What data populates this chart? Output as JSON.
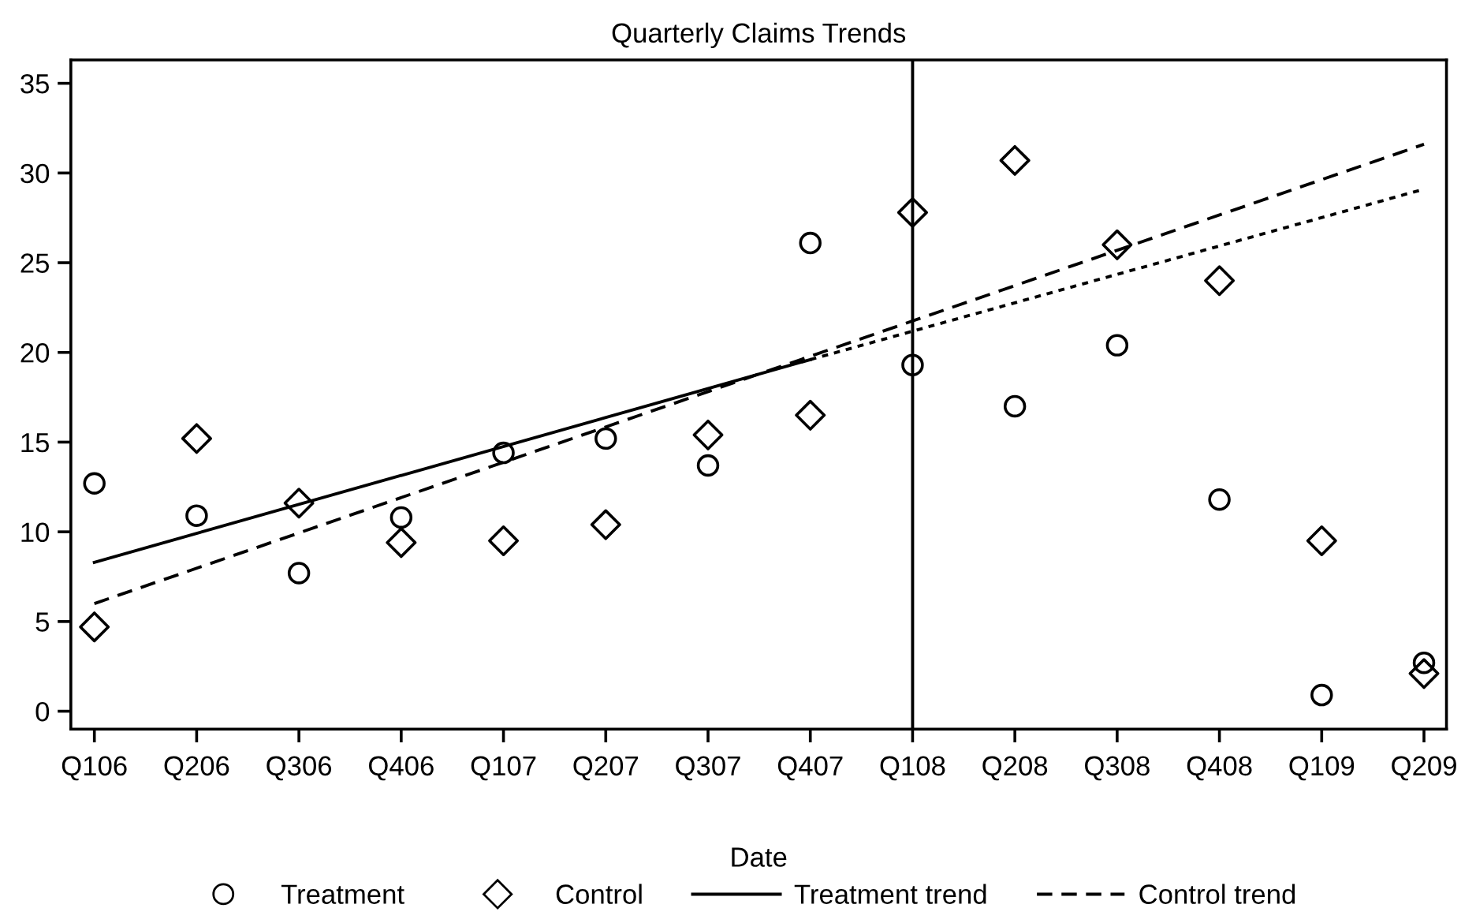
{
  "chart_data": {
    "type": "scatter",
    "title": "Quarterly Claims Trends",
    "xlabel": "Date",
    "categories": [
      "Q106",
      "Q206",
      "Q306",
      "Q406",
      "Q107",
      "Q207",
      "Q307",
      "Q407",
      "Q108",
      "Q208",
      "Q308",
      "Q408",
      "Q109",
      "Q209"
    ],
    "series": [
      {
        "name": "Treatment",
        "marker": "circle",
        "color": "#000000",
        "values": [
          12.7,
          10.9,
          7.7,
          10.8,
          14.4,
          15.2,
          13.7,
          26.1,
          19.3,
          17.0,
          20.4,
          11.8,
          0.9,
          2.7
        ]
      },
      {
        "name": "Control",
        "marker": "diamond",
        "color": "#000000",
        "values": [
          4.7,
          15.2,
          11.6,
          9.4,
          9.5,
          10.4,
          15.4,
          16.5,
          27.8,
          30.7,
          26.0,
          24.0,
          9.5,
          2.1
        ]
      },
      {
        "name": "Treatment trend",
        "type": "line",
        "line_style": "solid",
        "color": "#000000",
        "x": [
          "Q106",
          "Q407"
        ],
        "values": [
          8.3,
          19.6
        ]
      },
      {
        "name": "Control trend",
        "type": "line",
        "line_style": "dashed",
        "color": "#000000",
        "x": [
          "Q106",
          "Q209"
        ],
        "values": [
          6.0,
          31.6
        ]
      },
      {
        "type": "line",
        "line_style": "dotted",
        "color": "#000000",
        "x": [
          "Q407",
          "Q209"
        ],
        "values": [
          19.6,
          29.1
        ]
      }
    ],
    "ref_lines": [
      {
        "axis": "x",
        "value": "Q108",
        "color": "#000000",
        "line_style": "solid"
      }
    ],
    "ylim": [
      -1,
      36.3
    ],
    "yticks": [
      0,
      5,
      10,
      15,
      20,
      25,
      30,
      35
    ],
    "grid": false,
    "legend": "bottom"
  }
}
